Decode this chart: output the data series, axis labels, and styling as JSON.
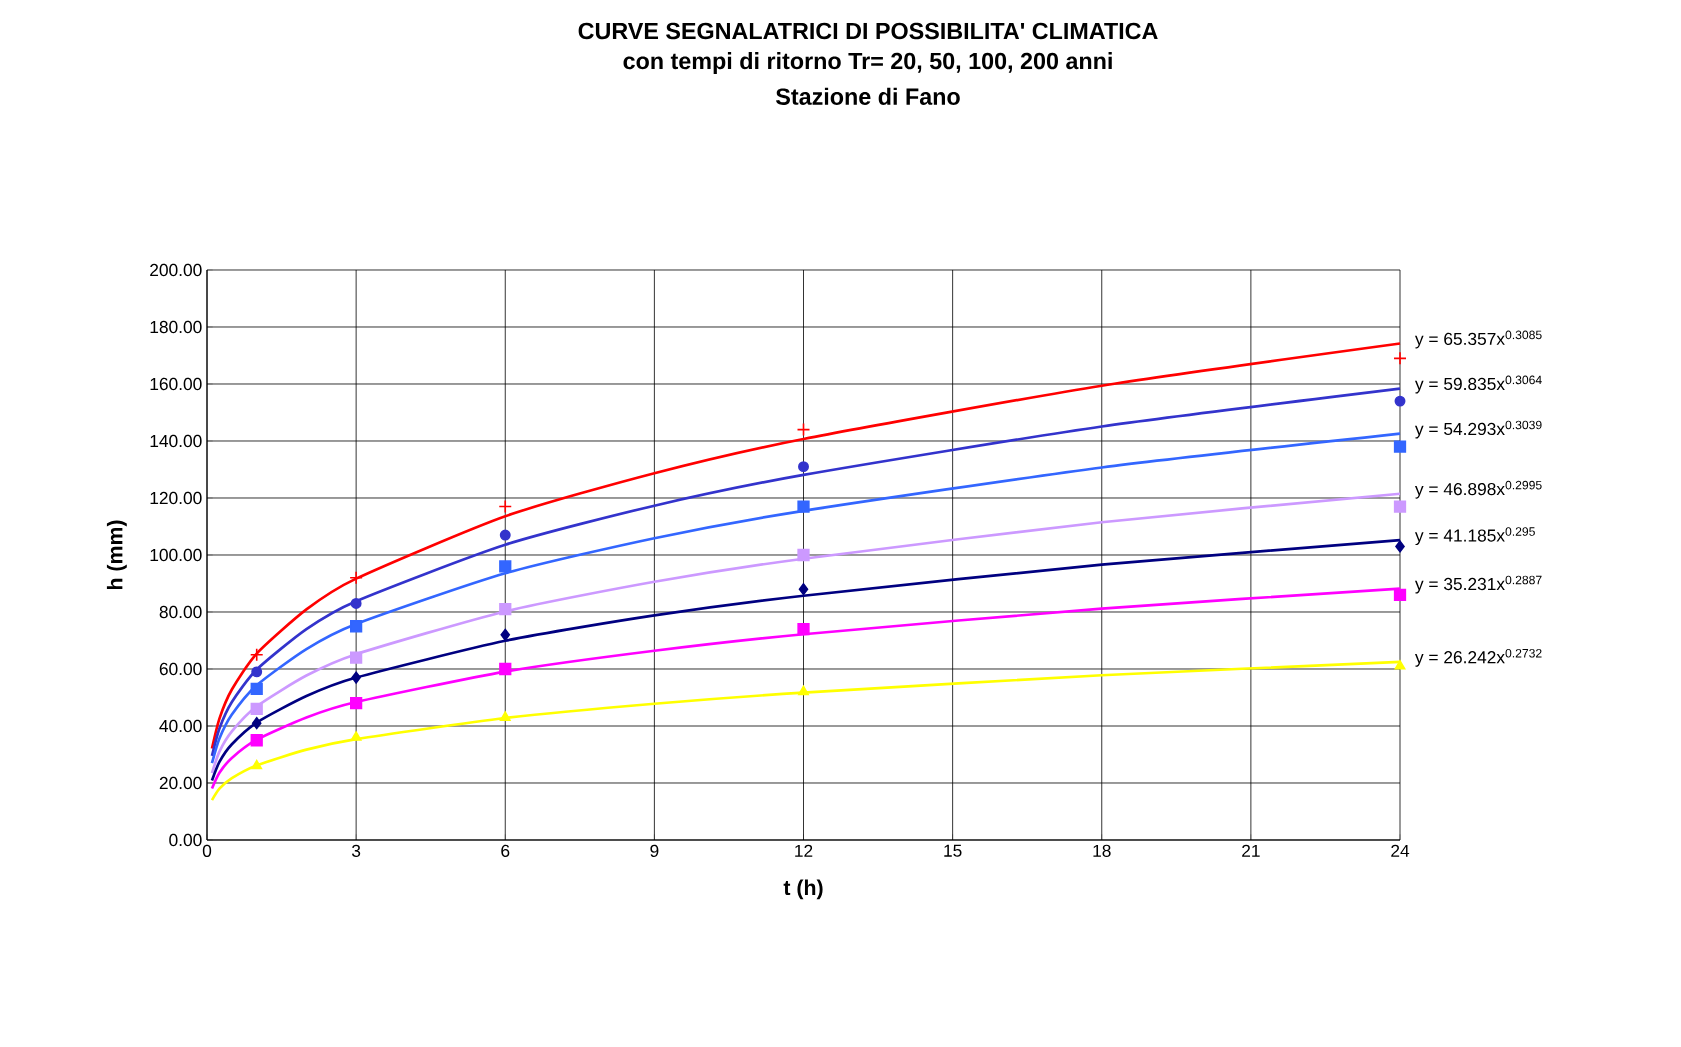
{
  "chart_data": {
    "type": "scatter",
    "title": "CURVE SEGNALATRICI DI POSSIBILITA' CLIMATICA",
    "subtitle": "con tempi di ritorno Tr= 20, 50, 100, 200 anni",
    "xlabel": "t (h)",
    "ylabel": "h (mm)",
    "xlim": [
      0,
      24
    ],
    "ylim": [
      0,
      200
    ],
    "xticks": [
      0,
      3,
      6,
      9,
      12,
      15,
      18,
      21,
      24
    ],
    "yticks": [
      {
        "value": 0,
        "label": "0.00"
      },
      {
        "value": 20,
        "label": "20.00"
      },
      {
        "value": 40,
        "label": "40.00"
      },
      {
        "value": 60,
        "label": "60.00"
      },
      {
        "value": 80,
        "label": "80.00"
      },
      {
        "value": 100,
        "label": "100.00"
      },
      {
        "value": 120,
        "label": "120.00"
      },
      {
        "value": 140,
        "label": "140.00"
      },
      {
        "value": 160,
        "label": "160.00"
      },
      {
        "value": 180,
        "label": "180.00"
      },
      {
        "value": 200,
        "label": "200.00"
      }
    ],
    "grid": true,
    "series": [
      {
        "type": "line",
        "color": "#ff0000",
        "x": [
          0.1,
          0.25,
          0.5,
          1,
          2,
          3,
          6,
          9,
          12,
          18,
          24
        ],
        "values": [
          32.1,
          42.6,
          52.8,
          65.4,
          80.9,
          91.7,
          113.6,
          128.7,
          140.7,
          159.4,
          174.2
        ]
      },
      {
        "type": "line",
        "color": "#3333cc",
        "x": [
          0.1,
          0.25,
          0.5,
          1,
          2,
          3,
          6,
          9,
          12,
          18,
          24
        ],
        "values": [
          29.5,
          39.1,
          48.4,
          59.8,
          74.0,
          83.8,
          103.6,
          117.3,
          128.1,
          145.1,
          158.4
        ]
      },
      {
        "type": "line",
        "color": "#3366ff",
        "x": [
          0.1,
          0.25,
          0.5,
          1,
          2,
          3,
          6,
          9,
          12,
          18,
          24
        ],
        "values": [
          27.0,
          35.6,
          44.0,
          54.3,
          67.0,
          75.8,
          93.6,
          105.9,
          115.5,
          130.7,
          142.6
        ]
      },
      {
        "type": "line",
        "color": "#cc99ff",
        "x": [
          0.1,
          0.25,
          0.5,
          1,
          2,
          3,
          6,
          9,
          12,
          18,
          24
        ],
        "values": [
          23.5,
          31.0,
          38.1,
          46.9,
          57.7,
          65.2,
          80.2,
          90.6,
          98.7,
          111.5,
          121.5
        ]
      },
      {
        "type": "line",
        "color": "#000080",
        "x": [
          0.1,
          0.25,
          0.5,
          1,
          2,
          3,
          6,
          9,
          12,
          18,
          24
        ],
        "values": [
          20.9,
          27.4,
          33.6,
          41.2,
          50.5,
          57.0,
          69.9,
          78.8,
          85.7,
          96.6,
          105.2
        ]
      },
      {
        "type": "line",
        "color": "#ff00ff",
        "x": [
          0.1,
          0.25,
          0.5,
          1,
          2,
          3,
          6,
          9,
          12,
          18,
          24
        ],
        "values": [
          18.1,
          23.6,
          28.8,
          35.2,
          43.0,
          48.4,
          59.1,
          66.4,
          72.2,
          81.2,
          88.2
        ]
      },
      {
        "type": "line",
        "color": "#ffff00",
        "x": [
          0.1,
          0.25,
          0.5,
          1,
          2,
          3,
          6,
          9,
          12,
          18,
          24
        ],
        "values": [
          14.0,
          18.0,
          21.7,
          26.2,
          31.7,
          35.4,
          42.8,
          47.8,
          51.7,
          57.8,
          62.5
        ]
      },
      {
        "marker": "cross",
        "color": "#ff0000",
        "x": [
          1,
          3,
          6,
          12,
          24
        ],
        "values": [
          65,
          92,
          117,
          144,
          169
        ]
      },
      {
        "marker": "circle",
        "color": "#3333cc",
        "x": [
          1,
          3,
          6,
          12,
          24
        ],
        "values": [
          59,
          83,
          107,
          131,
          154
        ]
      },
      {
        "marker": "square",
        "color": "#3366ff",
        "x": [
          1,
          3,
          6,
          12,
          24
        ],
        "values": [
          53,
          75,
          96,
          117,
          138
        ]
      },
      {
        "marker": "square",
        "color": "#cc99ff",
        "x": [
          1,
          3,
          6,
          12,
          24
        ],
        "values": [
          46,
          64,
          81,
          100,
          117
        ]
      },
      {
        "marker": "diamond",
        "color": "#000080",
        "x": [
          1,
          3,
          6,
          12,
          24
        ],
        "values": [
          41,
          57,
          72,
          88,
          103
        ]
      },
      {
        "marker": "square",
        "color": "#ff00ff",
        "x": [
          1,
          3,
          6,
          12,
          24
        ],
        "values": [
          35,
          48,
          60,
          74,
          86
        ]
      },
      {
        "marker": "triangle",
        "color": "#ffff00",
        "x": [
          1,
          3,
          6,
          12,
          24
        ],
        "values": [
          26,
          36,
          43,
          52,
          61
        ]
      }
    ],
    "annotations": [
      "Stazione di Fano",
      "y = 65.357x$^{0.3085}$",
      "y = 59.835x$^{0.3064}$",
      "y = 54.293x$^{0.3039}$",
      "y = 46.898x$^{0.2995}$",
      "y = 41.185x$^{0.295}$",
      "y = 35.231x$^{0.2887}$",
      "y = 26.242x$^{0.2732}$"
    ]
  }
}
